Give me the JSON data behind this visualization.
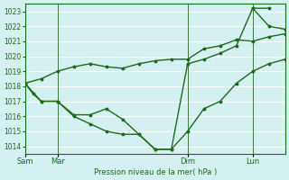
{
  "background_color": "#d4f0f0",
  "grid_color": "#ffffff",
  "line_color": "#1a6b1a",
  "xlabel": "Pression niveau de la mer( hPa )",
  "ylim": [
    1013.5,
    1023.5
  ],
  "yticks": [
    1014,
    1015,
    1016,
    1017,
    1018,
    1019,
    1020,
    1021,
    1022,
    1023
  ],
  "x_tick_labels": [
    "Sam",
    "Mar",
    "Dim",
    "Lun"
  ],
  "x_tick_positions": [
    0,
    12,
    60,
    84
  ],
  "vline_positions": [
    0,
    12,
    60,
    84
  ],
  "xlim": [
    0,
    96
  ],
  "series1": {
    "x": [
      0,
      3,
      6,
      12,
      18,
      24,
      30,
      36,
      42,
      48,
      54,
      60,
      66,
      72,
      78,
      84,
      90,
      96
    ],
    "y": [
      1018.2,
      1017.5,
      1017.0,
      1017.0,
      1016.1,
      1016.1,
      1016.5,
      1015.8,
      1014.8,
      1013.8,
      1013.8,
      1015.0,
      1016.5,
      1017.0,
      1018.2,
      1019.0,
      1019.5,
      1019.8
    ]
  },
  "series2": {
    "x": [
      0,
      6,
      12,
      18,
      24,
      30,
      36,
      42,
      48,
      54,
      60,
      66,
      72,
      78,
      84,
      90,
      96
    ],
    "y": [
      1018.2,
      1018.5,
      1019.0,
      1019.3,
      1019.5,
      1019.3,
      1019.2,
      1019.5,
      1019.7,
      1019.8,
      1019.8,
      1020.5,
      1020.7,
      1021.1,
      1021.0,
      1021.3,
      1021.5
    ]
  },
  "series3": {
    "x": [
      0,
      6,
      12,
      18,
      24,
      30,
      36,
      42,
      48,
      54,
      60,
      66,
      72,
      78,
      84,
      90
    ],
    "y": [
      1018.2,
      1017.0,
      1017.0,
      1016.0,
      1015.5,
      1015.0,
      1014.8,
      1014.8,
      1013.8,
      1013.8,
      1019.5,
      1019.8,
      1020.2,
      1020.7,
      1023.2,
      1023.2
    ]
  },
  "series4": {
    "x": [
      84,
      90,
      96
    ],
    "y": [
      1023.2,
      1022.0,
      1021.8
    ]
  }
}
